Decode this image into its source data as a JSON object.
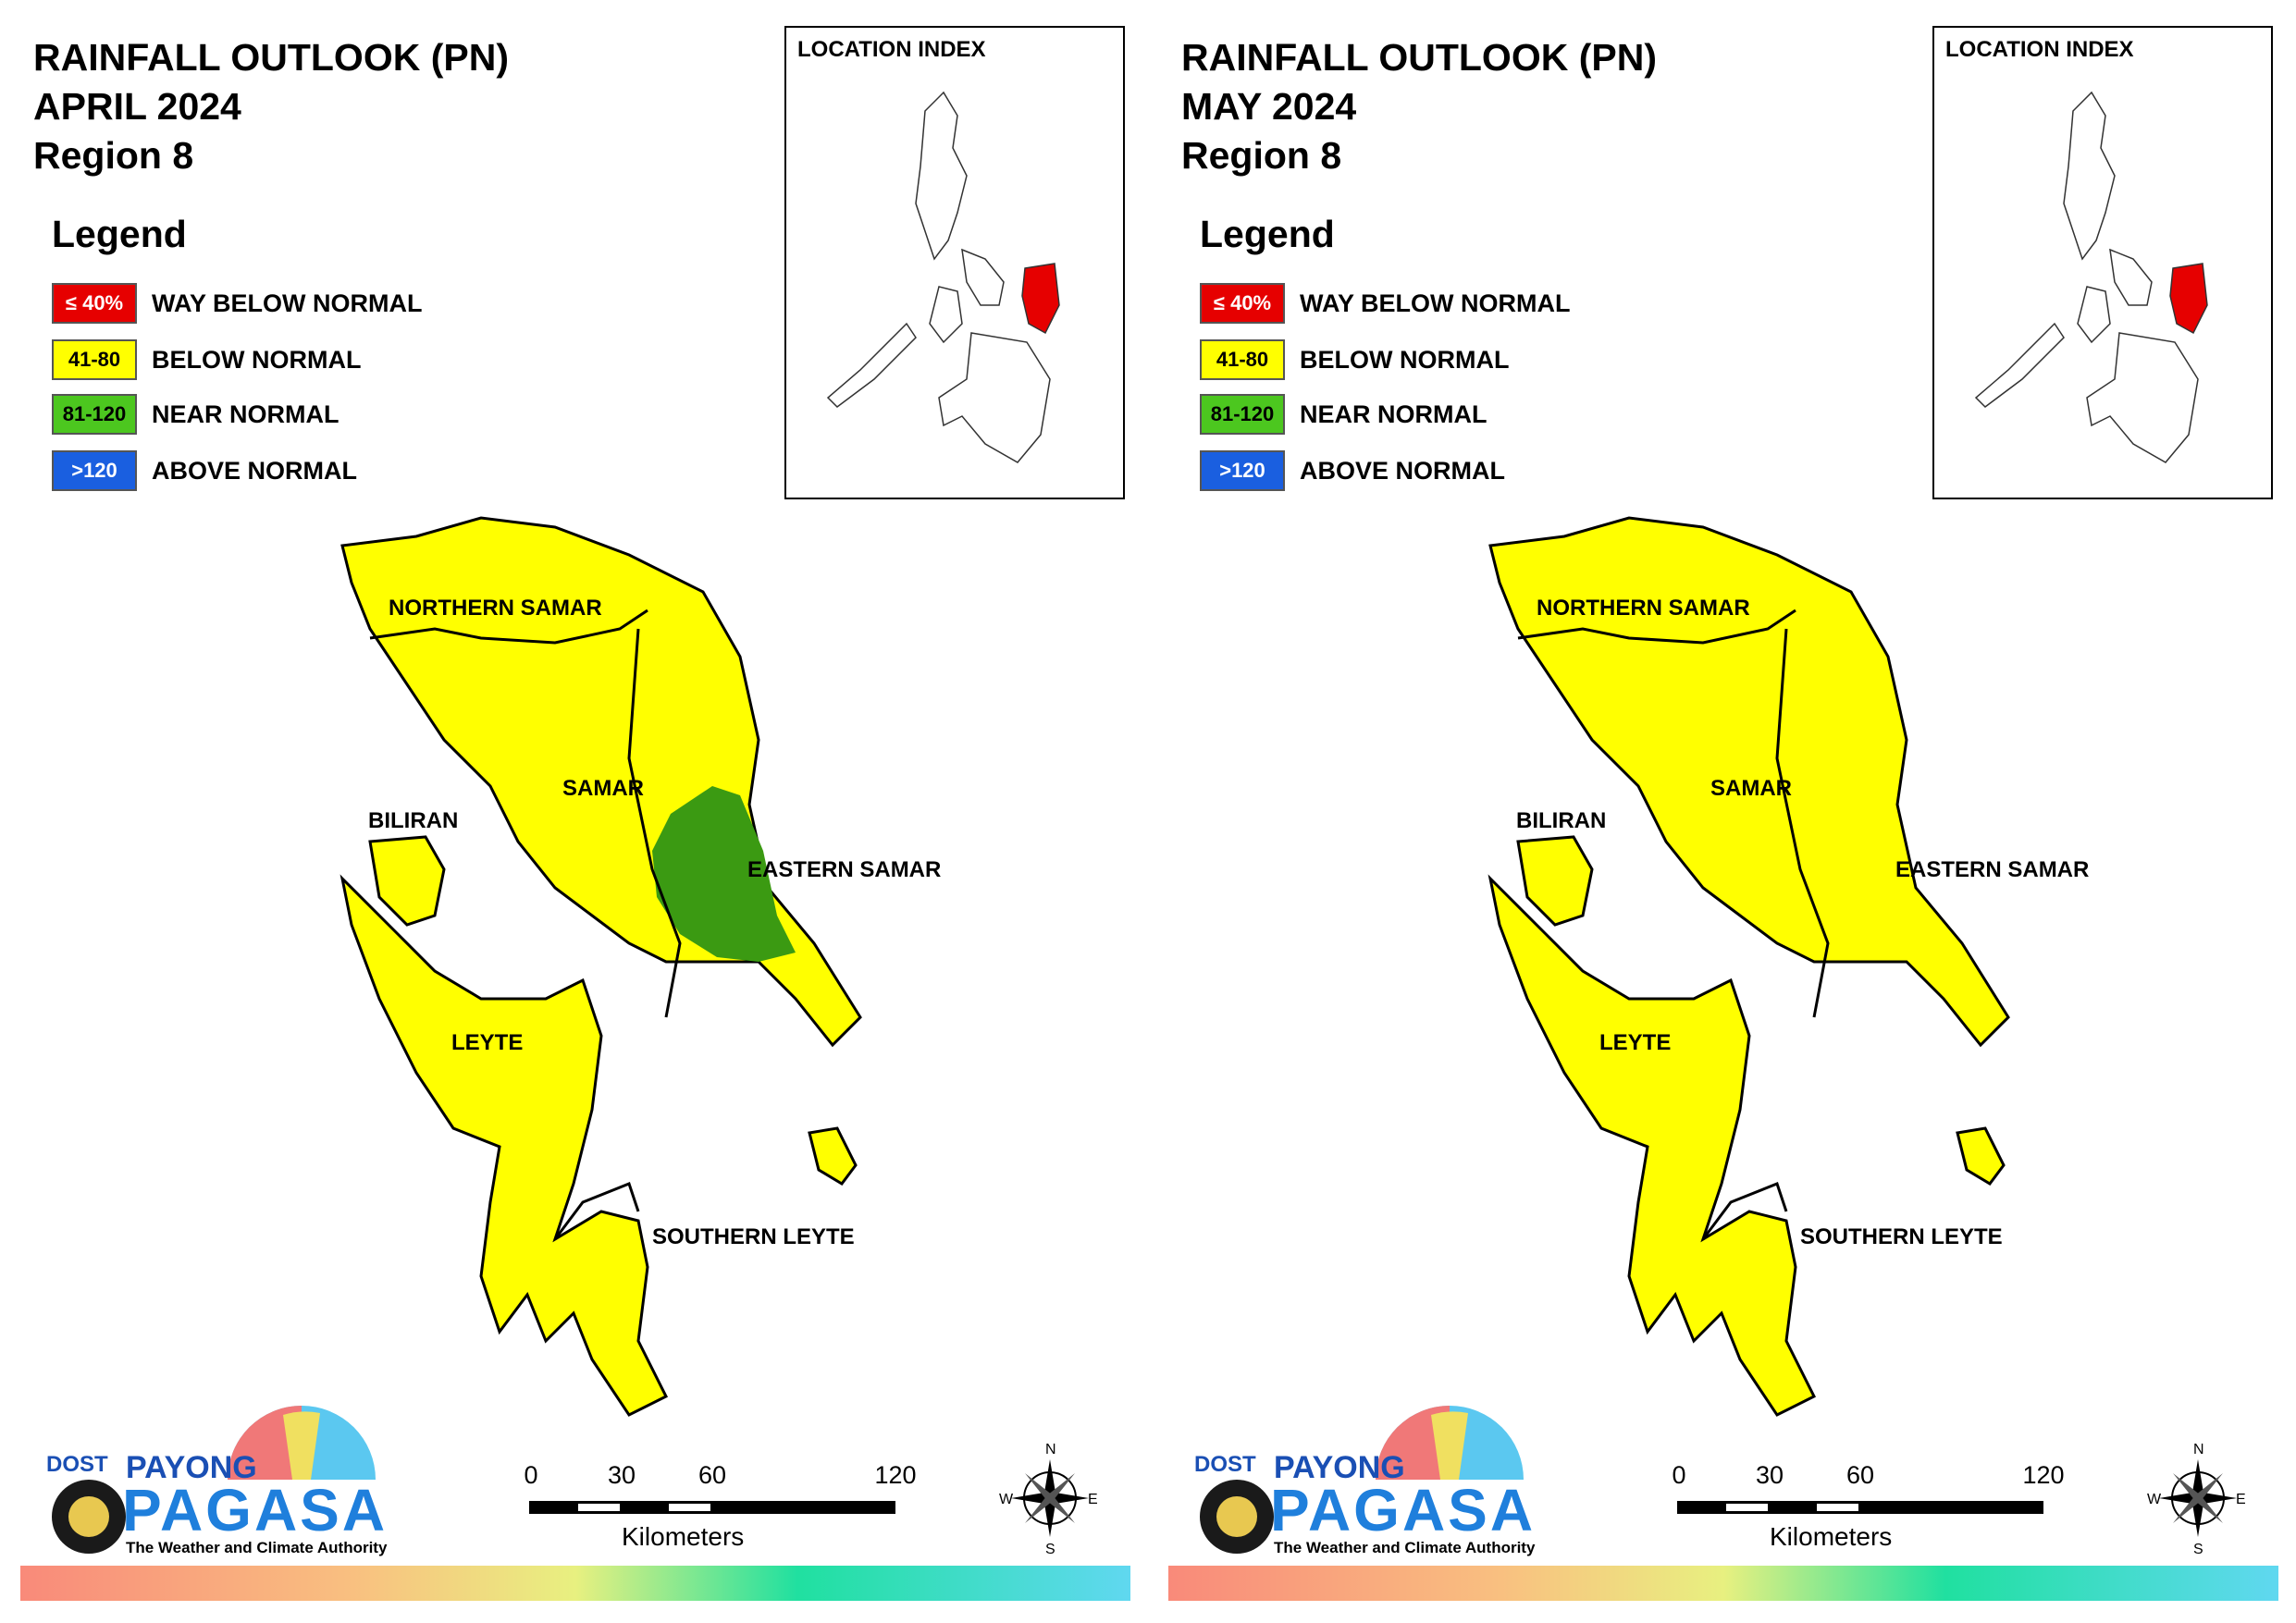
{
  "legend": {
    "title": "Legend",
    "items": [
      {
        "code": "≤ 40%",
        "label": "WAY BELOW NORMAL",
        "color": "#e60000",
        "text_color": "#ffffff"
      },
      {
        "code": "41-80",
        "label": "BELOW NORMAL",
        "color": "#ffff00",
        "text_color": "#000000"
      },
      {
        "code": "81-120",
        "label": "NEAR NORMAL",
        "color": "#4cc71f",
        "text_color": "#000000"
      },
      {
        "code": ">120",
        "label": "ABOVE NORMAL",
        "color": "#1a5fe0",
        "text_color": "#ffffff"
      }
    ]
  },
  "inset": {
    "title": "LOCATION INDEX",
    "highlight_color": "#e60000"
  },
  "region_labels": {
    "northern_samar": "NORTHERN SAMAR",
    "samar": "SAMAR",
    "biliran": "BILIRAN",
    "eastern_samar": "EASTERN SAMAR",
    "leyte": "LEYTE",
    "southern_leyte": "SOUTHERN LEYTE"
  },
  "scale": {
    "ticks": [
      "0",
      "30",
      "60",
      "120"
    ],
    "units": "Kilometers"
  },
  "compass": {
    "n": "N",
    "s": "S",
    "e": "E",
    "w": "W"
  },
  "logo": {
    "dost": "DOST",
    "payong": "PAYONG",
    "pagasa": "PAGASA",
    "tagline": "The Weather and Climate Authority"
  },
  "panels": [
    {
      "title": "RAINFALL OUTLOOK (PN)",
      "month": "APRIL 2024",
      "region": "Region 8",
      "base_category": "BELOW NORMAL",
      "base_color": "#ffff00",
      "near_normal_area": "Eastern Samar (central coast)",
      "near_normal_color": "#3b9a12"
    },
    {
      "title": "RAINFALL OUTLOOK (PN)",
      "month": "MAY 2024",
      "region": "Region 8",
      "base_category": "BELOW NORMAL",
      "base_color": "#ffff00"
    }
  ]
}
